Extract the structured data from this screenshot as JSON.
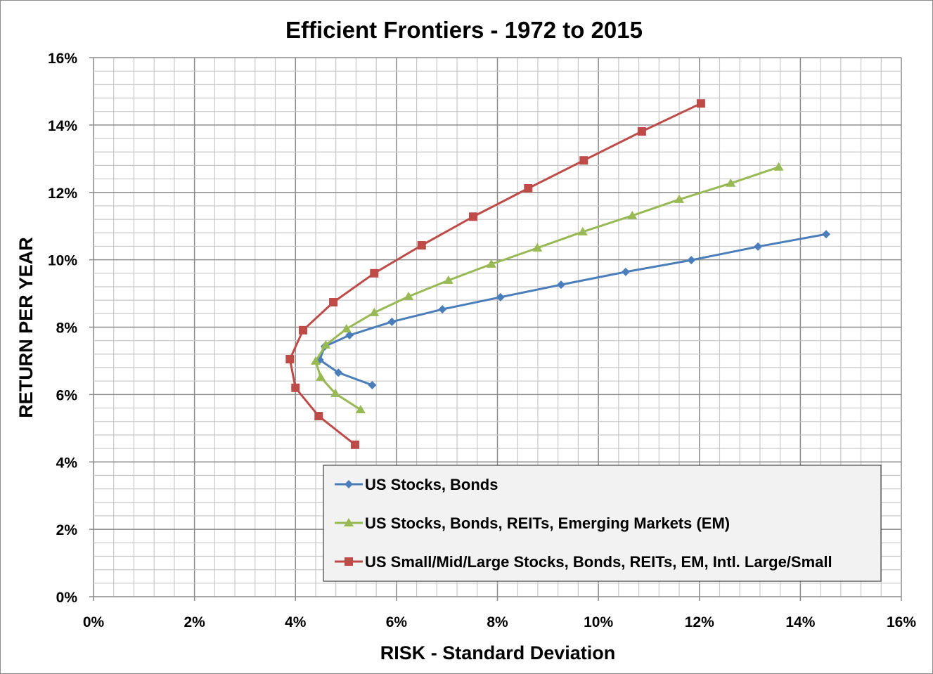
{
  "chart_data": {
    "type": "line",
    "title": "Efficient Frontiers - 1972 to 2015",
    "xlabel": "RISK - Standard Deviation",
    "ylabel": "RETURN PER YEAR",
    "xlim": [
      0,
      16
    ],
    "ylim": [
      0,
      16
    ],
    "x_ticks": [
      "0%",
      "2%",
      "4%",
      "6%",
      "8%",
      "10%",
      "12%",
      "14%",
      "16%"
    ],
    "y_ticks": [
      "0%",
      "2%",
      "4%",
      "6%",
      "8%",
      "10%",
      "12%",
      "14%",
      "16%"
    ],
    "grid": true,
    "legend_position": "bottom-right",
    "series": [
      {
        "name": "US Stocks, Bonds",
        "color": "#4a7ebb",
        "marker": "diamond",
        "x": [
          14.51,
          13.16,
          11.84,
          10.54,
          9.26,
          8.06,
          6.91,
          5.91,
          5.07,
          4.58,
          4.48,
          4.85,
          5.52
        ],
        "y": [
          10.76,
          10.39,
          9.99,
          9.64,
          9.26,
          8.89,
          8.53,
          8.16,
          7.76,
          7.43,
          7.03,
          6.65,
          6.28
        ]
      },
      {
        "name": "US Stocks, Bonds, REITs, Emerging Markets (EM)",
        "color": "#98b954",
        "marker": "triangle",
        "x": [
          13.57,
          12.62,
          11.6,
          10.67,
          9.69,
          8.79,
          7.88,
          7.03,
          6.24,
          5.56,
          5.01,
          4.6,
          4.4,
          4.5,
          4.79,
          5.29
        ],
        "y": [
          12.75,
          12.27,
          11.79,
          11.31,
          10.83,
          10.35,
          9.87,
          9.39,
          8.91,
          8.43,
          7.95,
          7.47,
          6.99,
          6.51,
          6.03,
          5.55
        ]
      },
      {
        "name": "US Small/Mid/Large Stocks, Bonds, REITs, EM, Intl. Large/Small",
        "color": "#be4b48",
        "marker": "square",
        "x": [
          12.03,
          10.86,
          9.71,
          8.61,
          7.52,
          6.5,
          5.56,
          4.75,
          4.15,
          3.89,
          4.0,
          4.46,
          5.18
        ],
        "y": [
          14.64,
          13.81,
          12.95,
          12.12,
          11.28,
          10.43,
          9.6,
          8.74,
          7.91,
          7.05,
          6.2,
          5.36,
          4.51
        ]
      }
    ]
  }
}
